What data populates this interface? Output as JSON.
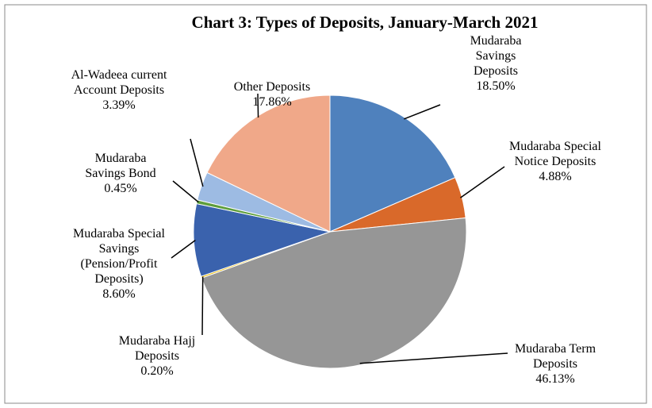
{
  "chart_data": {
    "type": "pie",
    "title": "Chart 3: Types of Deposits, January-March 2021",
    "categories": [
      "Mudaraba Savings Deposits",
      "Mudaraba Special Notice Deposits",
      "Mudaraba Term Deposits",
      "Mudaraba Hajj Deposits",
      "Mudaraba Special Savings (Pension/Profit Deposits)",
      "Mudaraba Savings Bond",
      "Al-Wadeea current Account Deposits",
      "Other Deposits"
    ],
    "values": [
      18.5,
      4.88,
      46.13,
      0.2,
      8.6,
      0.45,
      3.39,
      17.86
    ],
    "value_labels": [
      "18.50%",
      "4.88%",
      "46.13%",
      "0.20%",
      "8.60%",
      "0.45%",
      "3.39%",
      "17.86%"
    ],
    "colors": [
      "#4f81bd",
      "#d9692a",
      "#969696",
      "#e8b800",
      "#3a62ad",
      "#5e9e3c",
      "#9dbbe3",
      "#f0a889"
    ]
  }
}
